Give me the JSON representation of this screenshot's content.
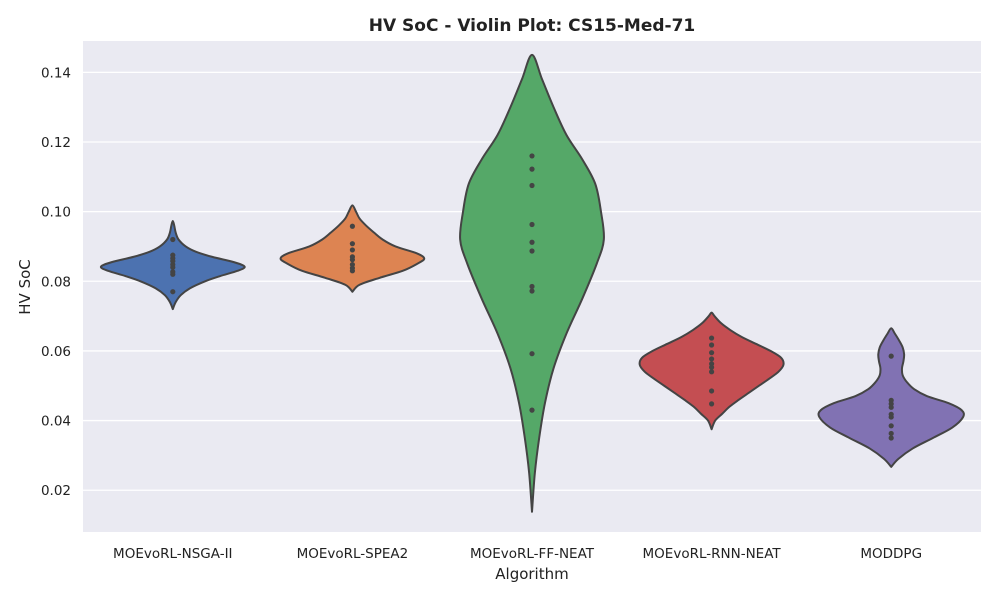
{
  "chart_data": {
    "type": "violin",
    "title": "HV SoC - Violin Plot: CS15-Med-71",
    "xlabel": "Algorithm",
    "ylabel": "HV SoC",
    "ylim": [
      0.008,
      0.149
    ],
    "yticks": [
      "0.02",
      "0.04",
      "0.06",
      "0.08",
      "0.10",
      "0.12",
      "0.14"
    ],
    "ytick_values": [
      0.02,
      0.04,
      0.06,
      0.08,
      0.1,
      0.12,
      0.14
    ],
    "grid": true,
    "legend": "none",
    "categories": [
      "MOEvoRL-NSGA-II",
      "MOEvoRL-SPEA2",
      "MOEvoRL-FF-NEAT",
      "MOEvoRL-RNN-NEAT",
      "MODDPG"
    ],
    "series": [
      {
        "color": "#4c72b0",
        "values": [
          0.077,
          0.082,
          0.0827,
          0.084,
          0.0848,
          0.0858,
          0.0866,
          0.0875,
          0.092
        ],
        "range": [
          0.072,
          0.0973
        ],
        "density": [
          [
            0.072,
            0.0
          ],
          [
            0.074,
            0.04
          ],
          [
            0.076,
            0.11
          ],
          [
            0.078,
            0.24
          ],
          [
            0.08,
            0.45
          ],
          [
            0.0815,
            0.66
          ],
          [
            0.083,
            0.9
          ],
          [
            0.0842,
            1.0
          ],
          [
            0.0855,
            0.85
          ],
          [
            0.087,
            0.55
          ],
          [
            0.0885,
            0.32
          ],
          [
            0.09,
            0.18
          ],
          [
            0.092,
            0.08
          ],
          [
            0.094,
            0.04
          ],
          [
            0.096,
            0.02
          ],
          [
            0.0973,
            0.0
          ]
        ]
      },
      {
        "color": "#dd8452",
        "values": [
          0.083,
          0.0838,
          0.0848,
          0.0862,
          0.087,
          0.089,
          0.0908,
          0.0958
        ],
        "range": [
          0.077,
          0.1018
        ],
        "density": [
          [
            0.077,
            0.0
          ],
          [
            0.079,
            0.1
          ],
          [
            0.081,
            0.38
          ],
          [
            0.083,
            0.7
          ],
          [
            0.085,
            0.9
          ],
          [
            0.0865,
            1.0
          ],
          [
            0.088,
            0.9
          ],
          [
            0.09,
            0.6
          ],
          [
            0.092,
            0.42
          ],
          [
            0.094,
            0.3
          ],
          [
            0.096,
            0.19
          ],
          [
            0.098,
            0.1
          ],
          [
            0.1,
            0.05
          ],
          [
            0.1018,
            0.0
          ]
        ]
      },
      {
        "color": "#55a868",
        "values": [
          0.043,
          0.0592,
          0.0772,
          0.0785,
          0.0887,
          0.0912,
          0.0963,
          0.1075,
          0.1122,
          0.116
        ],
        "range": [
          0.0138,
          0.145
        ],
        "density": [
          [
            0.0138,
            0.0
          ],
          [
            0.025,
            0.04
          ],
          [
            0.035,
            0.1
          ],
          [
            0.045,
            0.18
          ],
          [
            0.055,
            0.3
          ],
          [
            0.065,
            0.48
          ],
          [
            0.075,
            0.7
          ],
          [
            0.085,
            0.9
          ],
          [
            0.092,
            1.0
          ],
          [
            0.1,
            0.96
          ],
          [
            0.108,
            0.88
          ],
          [
            0.115,
            0.7
          ],
          [
            0.122,
            0.48
          ],
          [
            0.13,
            0.3
          ],
          [
            0.138,
            0.14
          ],
          [
            0.145,
            0.0
          ]
        ]
      },
      {
        "color": "#c44e52",
        "values": [
          0.0448,
          0.0485,
          0.054,
          0.0553,
          0.0563,
          0.0577,
          0.0595,
          0.0617,
          0.0637
        ],
        "range": [
          0.0375,
          0.071
        ],
        "density": [
          [
            0.0375,
            0.0
          ],
          [
            0.04,
            0.05
          ],
          [
            0.042,
            0.15
          ],
          [
            0.044,
            0.25
          ],
          [
            0.046,
            0.38
          ],
          [
            0.048,
            0.52
          ],
          [
            0.05,
            0.66
          ],
          [
            0.052,
            0.8
          ],
          [
            0.054,
            0.93
          ],
          [
            0.056,
            1.0
          ],
          [
            0.058,
            0.97
          ],
          [
            0.06,
            0.82
          ],
          [
            0.062,
            0.62
          ],
          [
            0.064,
            0.42
          ],
          [
            0.066,
            0.26
          ],
          [
            0.068,
            0.13
          ],
          [
            0.07,
            0.04
          ],
          [
            0.071,
            0.0
          ]
        ]
      },
      {
        "color": "#8172b3",
        "values": [
          0.035,
          0.0363,
          0.0385,
          0.041,
          0.0418,
          0.0438,
          0.0448,
          0.0458,
          0.0585
        ],
        "range": [
          0.0267,
          0.0665
        ],
        "density": [
          [
            0.0267,
            0.0
          ],
          [
            0.029,
            0.1
          ],
          [
            0.032,
            0.3
          ],
          [
            0.035,
            0.58
          ],
          [
            0.038,
            0.85
          ],
          [
            0.041,
            1.0
          ],
          [
            0.043,
            0.98
          ],
          [
            0.045,
            0.8
          ],
          [
            0.047,
            0.5
          ],
          [
            0.049,
            0.32
          ],
          [
            0.051,
            0.22
          ],
          [
            0.053,
            0.16
          ],
          [
            0.055,
            0.15
          ],
          [
            0.057,
            0.17
          ],
          [
            0.059,
            0.18
          ],
          [
            0.061,
            0.16
          ],
          [
            0.063,
            0.11
          ],
          [
            0.065,
            0.05
          ],
          [
            0.0665,
            0.0
          ]
        ]
      }
    ]
  }
}
